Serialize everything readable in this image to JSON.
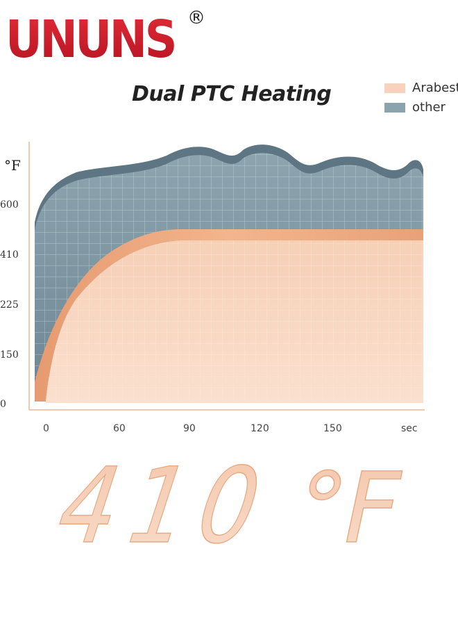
{
  "brand": {
    "name": "UNUNS",
    "mark": "®"
  },
  "chart_data": {
    "type": "area",
    "title": "Dual PTC Heating",
    "ylabel": "°F",
    "xlabel": "",
    "x_unit_label": "sec",
    "x_ticks": [
      "0",
      "60",
      "90",
      "120",
      "150"
    ],
    "y_ticks": [
      "0",
      "150",
      "225",
      "410",
      "600"
    ],
    "legend_position": "top-right",
    "series": [
      {
        "name": "Arabest",
        "color": "#f4c7a9",
        "plateau": 410
      },
      {
        "name": "other",
        "color": "#7f98a3",
        "plateau": 600
      }
    ]
  },
  "headline": {
    "value": "410",
    "unit": "°F"
  },
  "colors": {
    "brand": "#cf1f2e",
    "arabest": "#f4c7a9",
    "other": "#7f98a3"
  }
}
